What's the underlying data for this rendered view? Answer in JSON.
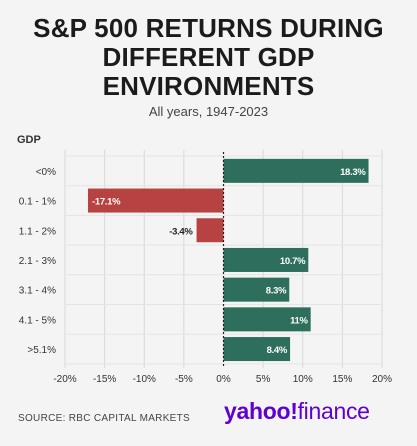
{
  "title_lines": [
    "S&P 500 RETURNS DURING",
    "DIFFERENT GDP",
    "ENVIRONMENTS"
  ],
  "subtitle": "All years, 1947-2023",
  "source": "SOURCE: RBC CAPITAL MARKETS",
  "logo": {
    "text_a": "yahoo!",
    "text_b": "finance"
  },
  "colors": {
    "positive": "#2e6e5c",
    "negative": "#b74242",
    "grid": "#d8d8d8",
    "zero_line": "#222222"
  },
  "chart_data": {
    "type": "bar",
    "orientation": "horizontal",
    "ylabel": "GDP",
    "categories": [
      "<0%",
      "0.1 - 1%",
      "1.1 - 2%",
      "2.1 - 3%",
      "3.1 - 4%",
      "4.1 - 5%",
      ">5.1%"
    ],
    "values": [
      18.3,
      -17.1,
      -3.4,
      10.7,
      8.3,
      11,
      8.4
    ],
    "value_labels": [
      "18.3%",
      "-17.1%",
      "-3.4%",
      "10.7%",
      "8.3%",
      "11%",
      "8.4%"
    ],
    "xlim": [
      -20,
      20
    ],
    "xticks": [
      -20,
      -15,
      -10,
      -5,
      0,
      5,
      10,
      15,
      20
    ],
    "xtick_labels": [
      "-20%",
      "-15%",
      "-10%",
      "-5%",
      "0%",
      "5%",
      "10%",
      "15%",
      "20%"
    ],
    "grid": true
  }
}
